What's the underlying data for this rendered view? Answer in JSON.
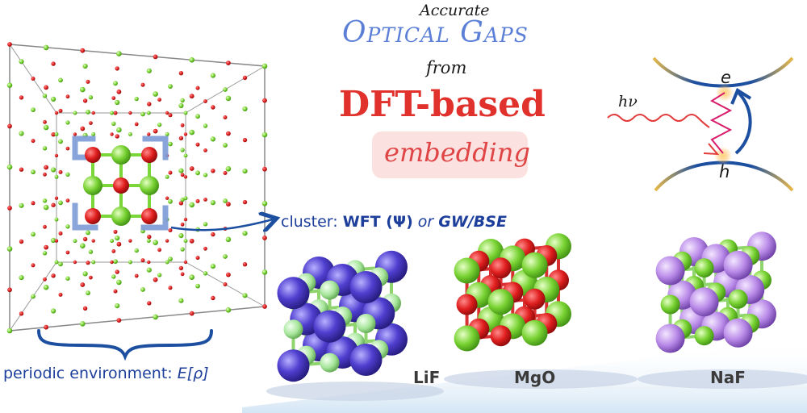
{
  "title": {
    "line1": "Accurate",
    "line2": "Optical Gaps",
    "line3": "from",
    "line4": "DFT-based",
    "line5": "embedding"
  },
  "cluster_label": {
    "prefix": "cluster: ",
    "method1": "WFT (Ψ)",
    "sep": " or ",
    "method2": "GW/BSE"
  },
  "environment_label": {
    "prefix": "periodic environment: ",
    "term": "E[ρ]"
  },
  "gap_diagram": {
    "photon": "hν",
    "electron": "e",
    "hole": "h"
  },
  "crystals": [
    {
      "name": "LiF",
      "large_color": "#4f3fd0",
      "small_color": "#a6e59a"
    },
    {
      "name": "MgO",
      "large_color": "#6fd630",
      "small_color": "#e01e1e"
    },
    {
      "name": "NaF",
      "large_color": "#b98ae8",
      "small_color": "#8fd46d"
    }
  ],
  "colors": {
    "title_blue": "#5b7fd6",
    "title_red": "#e0312c",
    "label_blue": "#1d3f9b",
    "atom_red": "#e01e1e",
    "atom_green": "#7bd63a"
  }
}
